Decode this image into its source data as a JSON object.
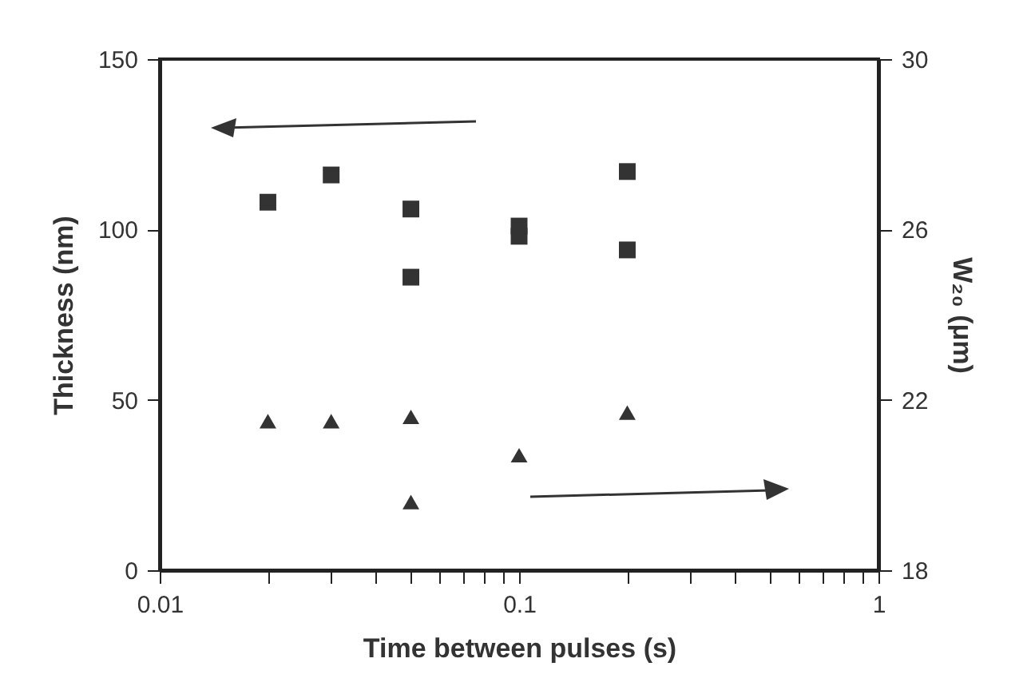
{
  "chart_data": {
    "type": "scatter",
    "xlabel": "Time between pulses (s)",
    "ylabel": "Thickness (nm)",
    "y2label": "W₂₀ (μm)",
    "log": "x",
    "grid": false,
    "xlim": [
      0.01,
      1
    ],
    "xticks": [
      0.01,
      {
        "value": 0.02,
        "label": null
      },
      {
        "value": 0.03,
        "label": null
      },
      {
        "value": 0.04,
        "label": null
      },
      {
        "value": 0.05,
        "label": null
      },
      {
        "value": 0.06,
        "label": null
      },
      {
        "value": 0.07,
        "label": null
      },
      {
        "value": 0.08,
        "label": null
      },
      {
        "value": 0.09,
        "label": null
      },
      0.1,
      {
        "value": 0.2,
        "label": null
      },
      {
        "value": 0.3,
        "label": null
      },
      {
        "value": 0.4,
        "label": null
      },
      {
        "value": 0.5,
        "label": null
      },
      {
        "value": 0.6,
        "label": null
      },
      {
        "value": 0.7,
        "label": null
      },
      {
        "value": 0.8,
        "label": null
      },
      {
        "value": 0.9,
        "label": null
      },
      1
    ],
    "ylim": [
      0,
      150
    ],
    "yticks": [
      0,
      50,
      100,
      150
    ],
    "y2lim": [
      18,
      30
    ],
    "y2ticks": [
      18,
      22,
      26,
      30
    ],
    "series": [
      {
        "color": "#333333",
        "marker": "square",
        "x": [
          0.02,
          0.03,
          0.05,
          0.05,
          0.1,
          0.1,
          0.2,
          0.2
        ],
        "values": [
          108,
          116,
          106,
          86,
          98,
          101,
          117,
          94
        ]
      },
      {
        "color": "#333333",
        "marker": "triangle",
        "axis": "y2",
        "x": [
          0.02,
          0.03,
          0.05,
          0.05,
          0.1,
          0.2
        ],
        "values": [
          21.5,
          21.5,
          21.6,
          19.6,
          20.7,
          21.7
        ]
      }
    ]
  }
}
